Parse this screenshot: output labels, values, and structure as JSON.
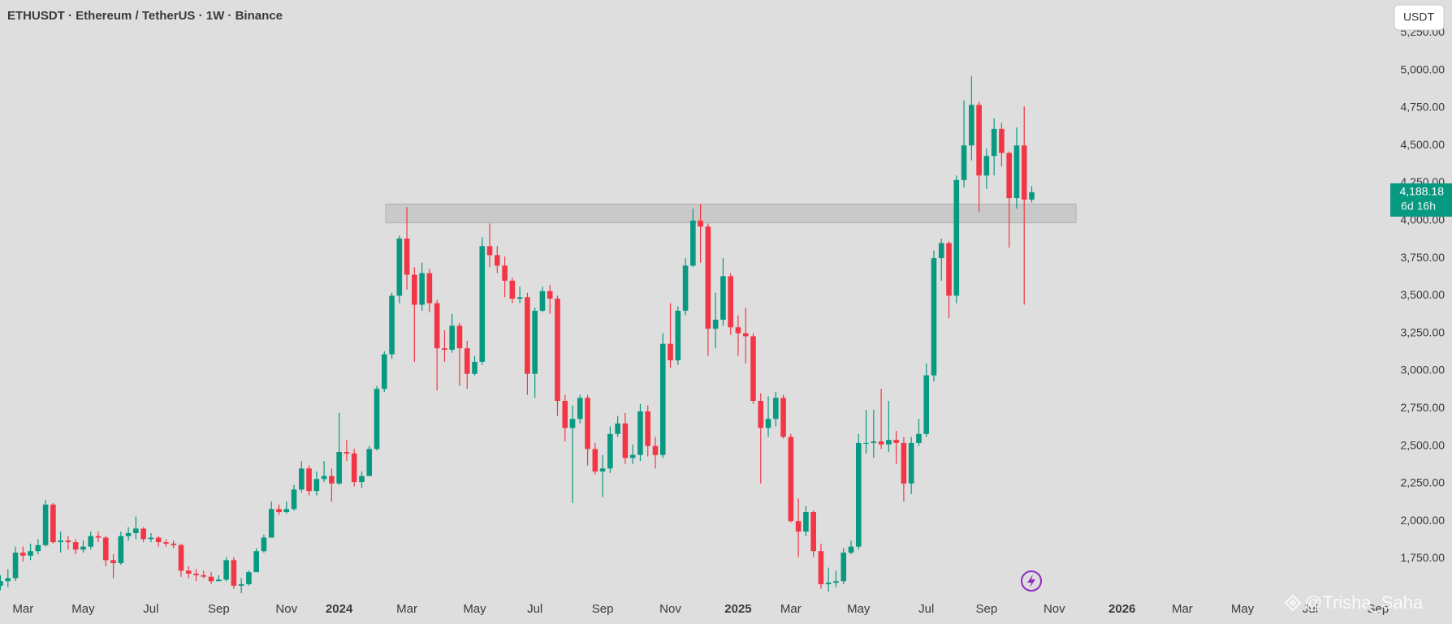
{
  "header": {
    "title": "ETHUSDT · Ethereum / TetherUS · 1W · Binance",
    "currency_button": "USDT"
  },
  "chart_data": {
    "type": "candlestick",
    "categories": [
      null,
      null,
      null,
      "Mar",
      null,
      null,
      null,
      null,
      null,
      null,
      null,
      "May",
      null,
      null,
      null,
      null,
      null,
      null,
      null,
      null,
      "Jul",
      null,
      null,
      null,
      null,
      null,
      null,
      null,
      null,
      "Sep",
      null,
      null,
      null,
      null,
      null,
      null,
      null,
      null,
      "Nov",
      null,
      null,
      null,
      null,
      null,
      null,
      "2024",
      null,
      null,
      null,
      null,
      null,
      null,
      null,
      null,
      "Mar",
      null,
      null,
      null,
      null,
      null,
      null,
      null,
      null,
      "May",
      null,
      null,
      null,
      null,
      null,
      null,
      null,
      "Jul",
      null,
      null,
      null,
      null,
      null,
      null,
      null,
      null,
      "Sep",
      null,
      null,
      null,
      null,
      null,
      null,
      null,
      null,
      "Nov",
      null,
      null,
      null,
      null,
      null,
      null,
      null,
      null,
      "2025",
      null,
      null,
      null,
      null,
      null,
      null,
      "Mar",
      null,
      null,
      null,
      null,
      null,
      null,
      null,
      null,
      "May",
      null,
      null,
      null,
      null,
      null,
      null,
      null,
      null,
      "Jul",
      null,
      null,
      null,
      null,
      null,
      null,
      null,
      "Sep",
      null,
      null,
      null,
      null,
      null,
      null,
      null,
      null,
      "Nov",
      null,
      null,
      null,
      null,
      null,
      null,
      null,
      null,
      "2026",
      null,
      null,
      null,
      null,
      null,
      null,
      null,
      "Mar",
      null,
      null,
      null,
      null,
      null,
      null,
      null,
      "May",
      null,
      null,
      null,
      null,
      null,
      null,
      null,
      null,
      "Jul",
      null,
      null,
      null,
      null,
      null,
      null,
      null,
      null,
      "Sep",
      null
    ],
    "open": [
      1570,
      1600,
      1620,
      1790,
      1770,
      1800,
      1840,
      2110,
      1860,
      1870,
      1860,
      1810,
      1830,
      1900,
      1890,
      1740,
      1720,
      1900,
      1920,
      1950,
      1880,
      1890,
      1860,
      1850,
      1840,
      1670,
      1650,
      1640,
      1630,
      1600,
      1610,
      1740,
      1570,
      1580,
      1660,
      1800,
      1890,
      2080,
      2060,
      2080,
      2210,
      2350,
      2200,
      2280,
      2300,
      2250,
      2460,
      2450,
      2260,
      2300,
      2480,
      2880,
      3110,
      3500,
      3880,
      3640,
      3440,
      3650,
      3450,
      3150,
      3140,
      3300,
      3150,
      2980,
      3060,
      3830,
      3770,
      3700,
      3600,
      3480,
      3490,
      2980,
      3400,
      3530,
      3480,
      2800,
      2620,
      2680,
      2820,
      2480,
      2330,
      2350,
      2580,
      2650,
      2420,
      2440,
      2730,
      2500,
      2440,
      3180,
      3070,
      3400,
      3700,
      4000,
      3960,
      3280,
      3340,
      3630,
      3290,
      3250,
      3230,
      2800,
      2620,
      2680,
      2820,
      2560,
      2000,
      1930,
      2060,
      1800,
      1580,
      1590,
      1600,
      1790,
      1830,
      2520,
      2520,
      2530,
      2510,
      2540,
      2520,
      2250,
      2520,
      2580,
      2970,
      3750,
      3850,
      3500,
      4270,
      4500,
      4770,
      4300,
      4430,
      4610,
      4450,
      4150,
      4500,
      4140,
      null,
      null,
      null,
      null,
      null,
      null,
      null,
      null,
      null,
      null,
      null,
      null,
      null,
      null,
      null,
      null,
      null,
      null,
      null,
      null,
      null,
      null,
      null,
      null,
      null,
      null,
      null,
      null,
      null,
      null,
      null,
      null,
      null,
      null,
      null,
      null,
      null,
      null,
      null,
      null,
      null,
      null,
      null,
      null,
      null,
      null,
      null
    ],
    "high": [
      1640,
      1680,
      1830,
      1830,
      1850,
      1880,
      2140,
      2120,
      1930,
      1900,
      1880,
      1870,
      1930,
      1930,
      1900,
      1780,
      1930,
      1960,
      2030,
      1960,
      1920,
      1900,
      1880,
      1870,
      1850,
      1700,
      1680,
      1670,
      1660,
      1640,
      1760,
      1760,
      1620,
      1670,
      1820,
      1910,
      2130,
      2110,
      2130,
      2240,
      2400,
      2370,
      2330,
      2400,
      2350,
      2720,
      2540,
      2480,
      2330,
      2500,
      2900,
      3130,
      3520,
      3900,
      4090,
      3690,
      3720,
      3680,
      3470,
      3270,
      3380,
      3320,
      3200,
      3100,
      3890,
      3980,
      3830,
      3760,
      3620,
      3560,
      3520,
      3420,
      3560,
      3570,
      3500,
      2840,
      2770,
      2840,
      2840,
      2520,
      2440,
      2630,
      2700,
      2720,
      2510,
      2780,
      2770,
      2560,
      3250,
      3450,
      3430,
      3750,
      4080,
      4110,
      3980,
      3520,
      3750,
      3650,
      3370,
      3420,
      3250,
      2850,
      2830,
      2860,
      2840,
      2580,
      2150,
      2100,
      2070,
      1850,
      1690,
      1670,
      1820,
      1870,
      2580,
      2740,
      2740,
      2880,
      2800,
      2600,
      2560,
      2560,
      2680,
      3050,
      3800,
      3880,
      3860,
      4300,
      4800,
      4960,
      4790,
      4480,
      4680,
      4650,
      4460,
      4620,
      4760,
      4230,
      null,
      null,
      null,
      null,
      null,
      null,
      null,
      null,
      null,
      null,
      null,
      null,
      null,
      null,
      null,
      null,
      null,
      null,
      null,
      null,
      null,
      null,
      null,
      null,
      null,
      null,
      null,
      null,
      null,
      null,
      null,
      null,
      null,
      null,
      null,
      null,
      null,
      null,
      null,
      null,
      null,
      null,
      null,
      null,
      null,
      null,
      null
    ],
    "low": [
      1540,
      1560,
      1600,
      1730,
      1740,
      1780,
      1830,
      1850,
      1790,
      1810,
      1780,
      1790,
      1810,
      1860,
      1700,
      1620,
      1710,
      1870,
      1880,
      1860,
      1860,
      1830,
      1830,
      1820,
      1630,
      1620,
      1600,
      1620,
      1580,
      1600,
      1600,
      1550,
      1520,
      1570,
      1660,
      1790,
      1890,
      2040,
      2050,
      2070,
      2190,
      2170,
      2170,
      2260,
      2130,
      2240,
      2400,
      2230,
      2220,
      2300,
      2470,
      2860,
      3080,
      3450,
      3540,
      3060,
      3400,
      3390,
      2870,
      3060,
      3120,
      2900,
      2880,
      2970,
      3040,
      3690,
      3650,
      3490,
      3450,
      3450,
      2840,
      2820,
      3390,
      3380,
      2700,
      2530,
      2120,
      2650,
      2370,
      2310,
      2160,
      2320,
      2560,
      2380,
      2380,
      2400,
      2430,
      2350,
      2420,
      3020,
      3040,
      3370,
      3690,
      3720,
      3100,
      3150,
      3300,
      3240,
      3100,
      3050,
      2780,
      2250,
      2560,
      2630,
      2550,
      1990,
      1760,
      1900,
      1760,
      1550,
      1530,
      1560,
      1580,
      1780,
      1810,
      2450,
      2420,
      2480,
      2460,
      2380,
      2130,
      2180,
      2500,
      2560,
      2930,
      3600,
      3350,
      3450,
      4220,
      4400,
      4060,
      4210,
      4300,
      4360,
      3820,
      4080,
      3440,
      4120,
      null,
      null,
      null,
      null,
      null,
      null,
      null,
      null,
      null,
      null,
      null,
      null,
      null,
      null,
      null,
      null,
      null,
      null,
      null,
      null,
      null,
      null,
      null,
      null,
      null,
      null,
      null,
      null,
      null,
      null,
      null,
      null,
      null,
      null,
      null,
      null,
      null,
      null,
      null,
      null,
      null,
      null,
      null,
      null,
      null,
      null,
      null
    ],
    "close": [
      1600,
      1620,
      1790,
      1770,
      1800,
      1840,
      2110,
      1860,
      1870,
      1860,
      1810,
      1830,
      1900,
      1890,
      1740,
      1720,
      1900,
      1920,
      1950,
      1880,
      1890,
      1860,
      1850,
      1840,
      1670,
      1650,
      1640,
      1630,
      1600,
      1610,
      1740,
      1570,
      1580,
      1660,
      1800,
      1890,
      2080,
      2060,
      2080,
      2210,
      2350,
      2200,
      2280,
      2300,
      2250,
      2460,
      2450,
      2260,
      2300,
      2480,
      2880,
      3110,
      3500,
      3880,
      3640,
      3440,
      3650,
      3450,
      3150,
      3140,
      3300,
      3150,
      2980,
      3060,
      3830,
      3770,
      3700,
      3600,
      3480,
      3490,
      2980,
      3400,
      3530,
      3480,
      2800,
      2620,
      2680,
      2820,
      2480,
      2330,
      2350,
      2580,
      2650,
      2420,
      2440,
      2730,
      2500,
      2440,
      3180,
      3070,
      3400,
      3700,
      4000,
      3960,
      3280,
      3340,
      3630,
      3290,
      3250,
      3230,
      2800,
      2620,
      2680,
      2820,
      2560,
      2000,
      1930,
      2060,
      1800,
      1580,
      1590,
      1600,
      1790,
      1830,
      2520,
      2520,
      2530,
      2510,
      2540,
      2520,
      2250,
      2520,
      2580,
      2970,
      3750,
      3850,
      3500,
      4270,
      4500,
      4770,
      4300,
      4430,
      4610,
      4450,
      4150,
      4500,
      4140,
      4188.18,
      null,
      null,
      null,
      null,
      null,
      null,
      null,
      null,
      null,
      null,
      null,
      null,
      null,
      null,
      null,
      null,
      null,
      null,
      null,
      null,
      null,
      null,
      null,
      null,
      null,
      null,
      null,
      null,
      null,
      null,
      null,
      null,
      null,
      null,
      null,
      null,
      null,
      null,
      null,
      null,
      null,
      null,
      null,
      null,
      null,
      null,
      null
    ],
    "up_color": "#089981",
    "down_color": "#f23645",
    "ylim": [
      1496,
      5468
    ],
    "yticks": [
      {
        "value": 1750,
        "label": "1,750.00"
      },
      {
        "value": 2000,
        "label": "2,000.00"
      },
      {
        "value": 2250,
        "label": "2,250.00"
      },
      {
        "value": 2500,
        "label": "2,500.00"
      },
      {
        "value": 2750,
        "label": "2,750.00"
      },
      {
        "value": 3000,
        "label": "3,000.00"
      },
      {
        "value": 3250,
        "label": "3,250.00"
      },
      {
        "value": 3500,
        "label": "3,500.00"
      },
      {
        "value": 3750,
        "label": "3,750.00"
      },
      {
        "value": 4000,
        "label": "4,000.00"
      },
      {
        "value": 4250,
        "label": "4,250.00"
      },
      {
        "value": 4500,
        "label": "4,500.00"
      },
      {
        "value": 4750,
        "label": "4,750.00"
      },
      {
        "value": 5000,
        "label": "5,000.00"
      },
      {
        "value": 5250,
        "label": "5,250.00"
      }
    ],
    "grid": false,
    "last_price_label": "4,188.18",
    "countdown": "6d 16h",
    "zone": {
      "low": 3985,
      "high": 4110,
      "color": "#c6c6c6"
    }
  },
  "watermark": "@Trisha_Saha"
}
